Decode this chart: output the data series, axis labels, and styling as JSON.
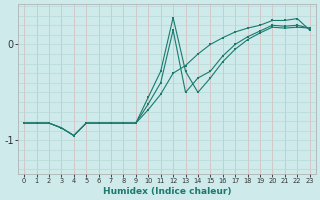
{
  "xlabel": "Humidex (Indice chaleur)",
  "background_color": "#ceeaea",
  "grid_color_v": "#d8b8b8",
  "grid_color_h": "#b8d8d8",
  "line_color": "#1a7a6e",
  "x_values": [
    0,
    1,
    2,
    3,
    4,
    5,
    6,
    7,
    8,
    9,
    10,
    11,
    12,
    13,
    14,
    15,
    16,
    17,
    18,
    19,
    20,
    21,
    22,
    23
  ],
  "line1_y": [
    -0.82,
    -0.82,
    -0.82,
    -0.87,
    -0.95,
    -0.82,
    -0.82,
    -0.82,
    -0.82,
    -0.82,
    -0.68,
    -0.52,
    -0.3,
    -0.22,
    -0.1,
    0.0,
    0.07,
    0.13,
    0.17,
    0.2,
    0.25,
    0.25,
    0.27,
    0.15
  ],
  "line2_y": [
    -0.82,
    -0.82,
    -0.82,
    -0.87,
    -0.95,
    -0.82,
    -0.82,
    -0.82,
    -0.82,
    -0.82,
    -0.55,
    -0.28,
    0.28,
    -0.28,
    -0.5,
    -0.35,
    -0.18,
    -0.05,
    0.05,
    0.12,
    0.18,
    0.17,
    0.18,
    0.17
  ],
  "line3_y": [
    -0.82,
    -0.82,
    -0.82,
    -0.87,
    -0.95,
    -0.82,
    -0.82,
    -0.82,
    -0.82,
    -0.82,
    -0.62,
    -0.4,
    0.15,
    -0.5,
    -0.35,
    -0.28,
    -0.12,
    0.0,
    0.08,
    0.14,
    0.2,
    0.19,
    0.2,
    0.17
  ],
  "ylim": [
    -1.35,
    0.42
  ],
  "xlim": [
    -0.5,
    23.5
  ],
  "yticks": [
    -1,
    0
  ],
  "xticks": [
    0,
    1,
    2,
    3,
    4,
    5,
    6,
    7,
    8,
    9,
    10,
    11,
    12,
    13,
    14,
    15,
    16,
    17,
    18,
    19,
    20,
    21,
    22,
    23
  ]
}
